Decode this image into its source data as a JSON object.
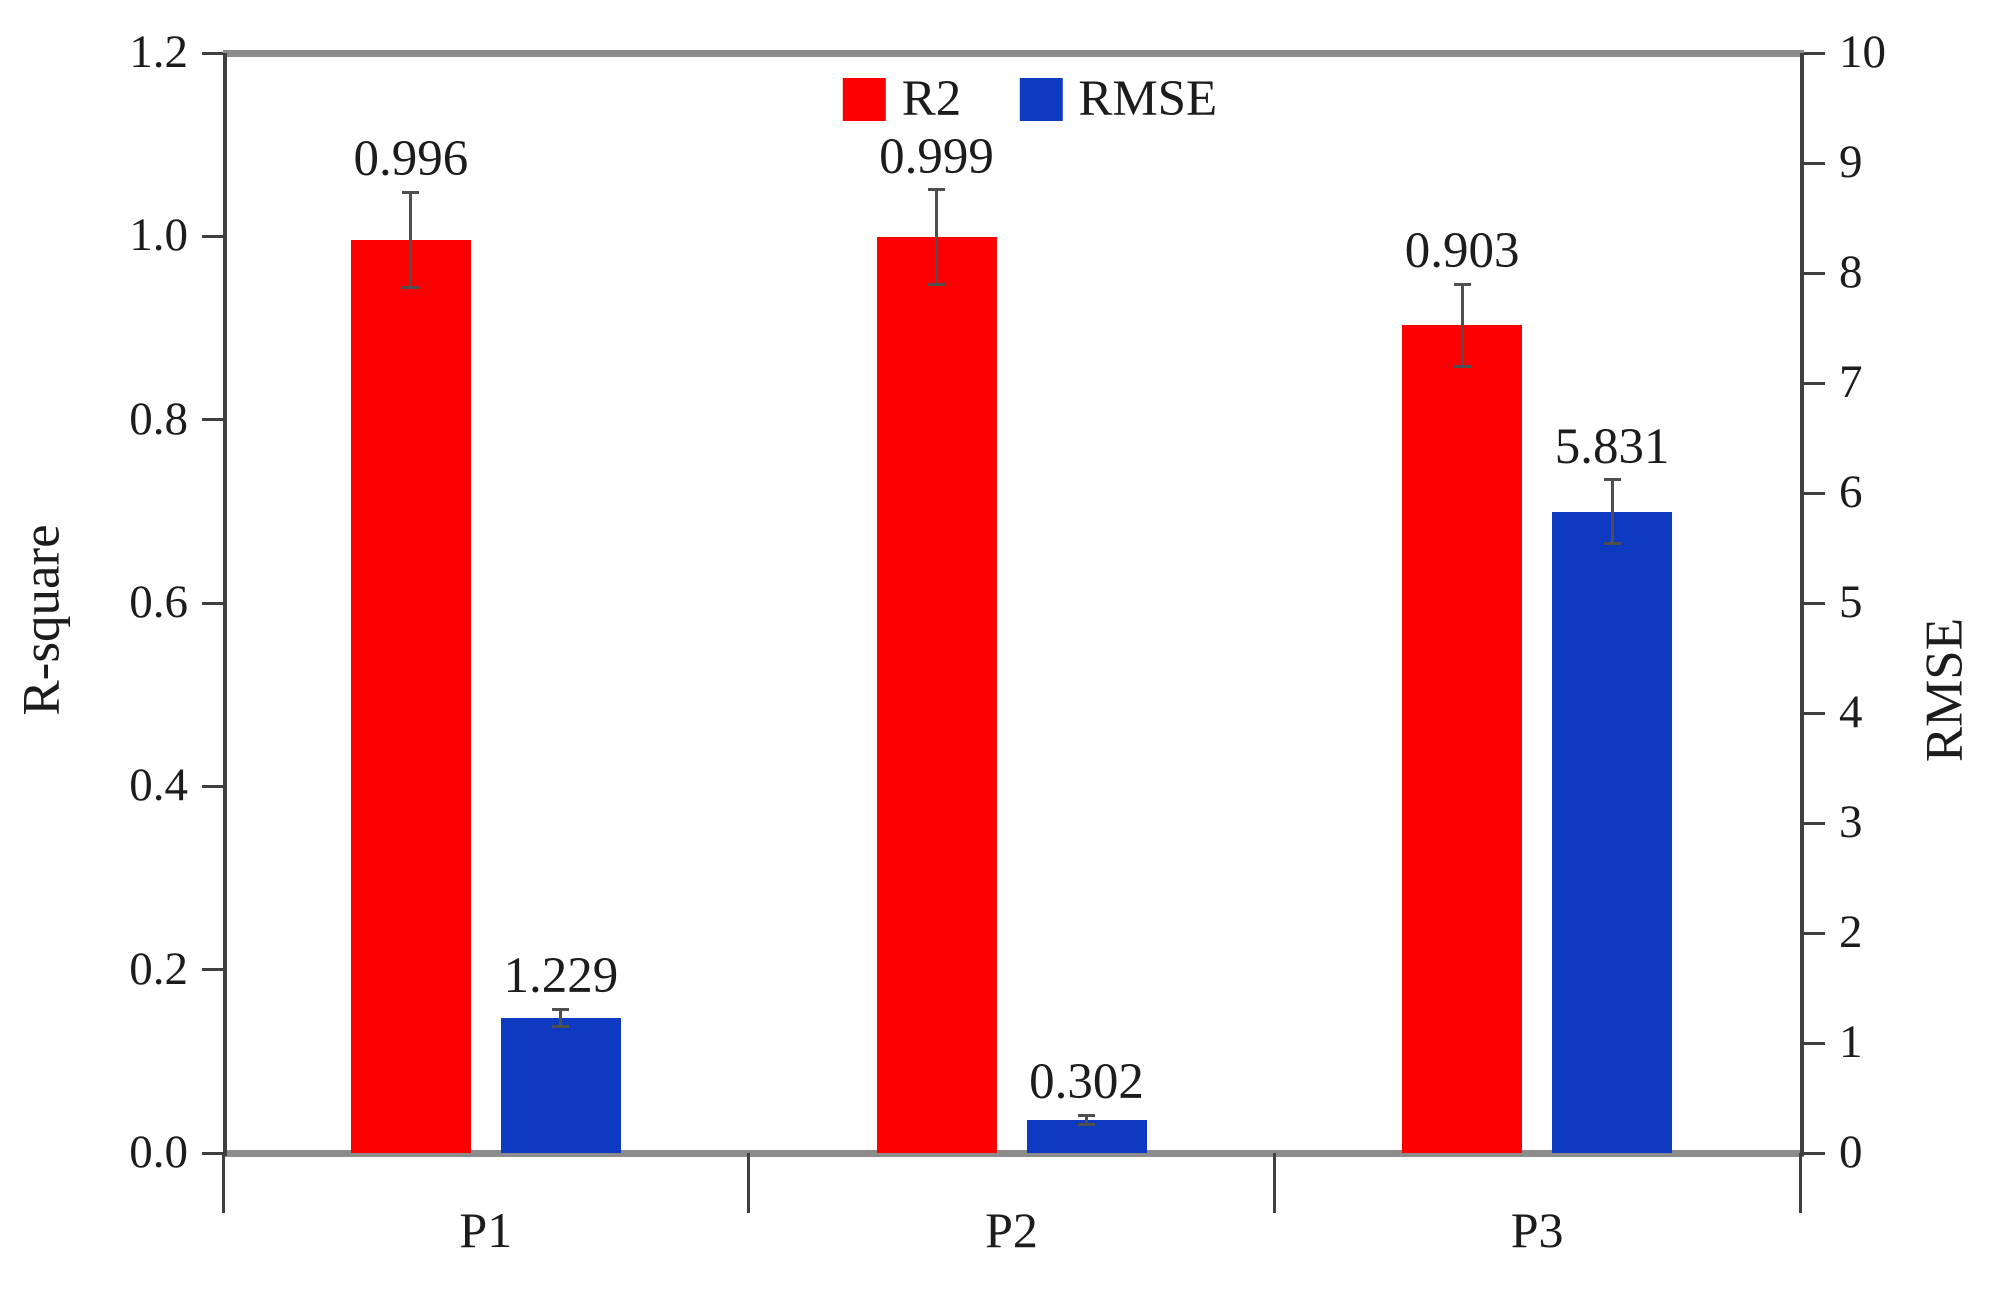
{
  "chart_data": {
    "type": "bar",
    "categories": [
      "P1",
      "P2",
      "P3"
    ],
    "series": [
      {
        "name": "R2",
        "axis": "left",
        "color": "#fc0000",
        "values": [
          0.996,
          0.999,
          0.903
        ],
        "errors": [
          0.052,
          0.052,
          0.045
        ],
        "labels": [
          "0.996",
          "0.999",
          "0.903"
        ]
      },
      {
        "name": "RMSE",
        "axis": "right",
        "color": "#0d3ac1",
        "values": [
          1.229,
          0.302,
          5.831
        ],
        "errors": [
          0.08,
          0.04,
          0.29
        ],
        "labels": [
          "1.229",
          "0.302",
          "5.831"
        ]
      }
    ],
    "left_axis": {
      "label": "R-square",
      "min": 0,
      "max": 1.2,
      "step": 0.2,
      "ticks": [
        "0.0",
        "0.2",
        "0.4",
        "0.6",
        "0.8",
        "1.0",
        "1.2"
      ]
    },
    "right_axis": {
      "label": "RMSE",
      "min": 0,
      "max": 10,
      "step": 1,
      "ticks": [
        "0",
        "1",
        "2",
        "3",
        "4",
        "5",
        "6",
        "7",
        "8",
        "9",
        "10"
      ]
    },
    "legend": [
      {
        "label": "R2",
        "color": "#fc0000"
      },
      {
        "label": "RMSE",
        "color": "#0d3ac1"
      }
    ],
    "grid": false,
    "legend_position": "top-center",
    "error_bar_color": "#4f4f4f",
    "frame_gray": "#8c8c8c",
    "axis_dark": "#3f3f3f"
  }
}
